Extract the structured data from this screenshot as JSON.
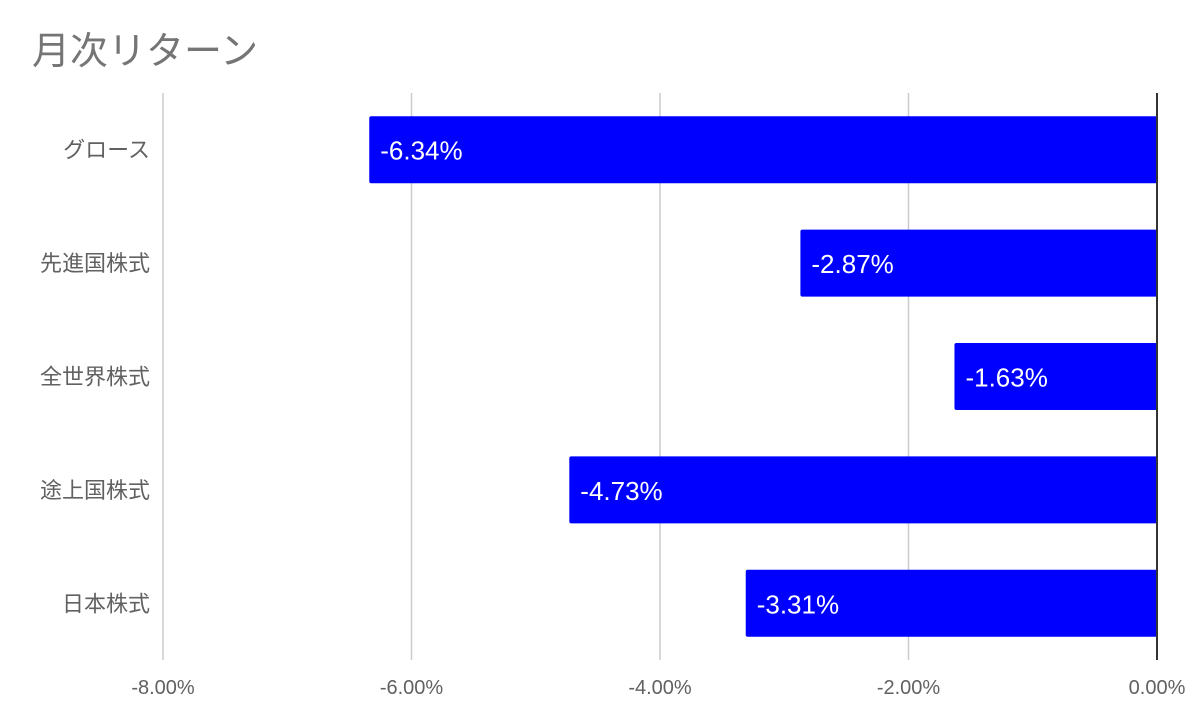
{
  "chart_data": {
    "type": "bar",
    "orientation": "horizontal",
    "title": "月次リターン",
    "categories": [
      "グロース",
      "先進国株式",
      "全世界株式",
      "途上国株式",
      "日本株式"
    ],
    "values": [
      -6.34,
      -2.87,
      -1.63,
      -4.73,
      -3.31
    ],
    "value_labels": [
      "-6.34%",
      "-2.87%",
      "-1.63%",
      "-4.73%",
      "-3.31%"
    ],
    "xlim": [
      -8,
      0
    ],
    "xticks": [
      -8,
      -6,
      -4,
      -2,
      0
    ],
    "xtick_labels": [
      "-8.00%",
      "-6.00%",
      "-4.00%",
      "-2.00%",
      "0.00%"
    ],
    "grid": true,
    "bar_color": "#0000ff",
    "xlabel": "",
    "ylabel": ""
  }
}
